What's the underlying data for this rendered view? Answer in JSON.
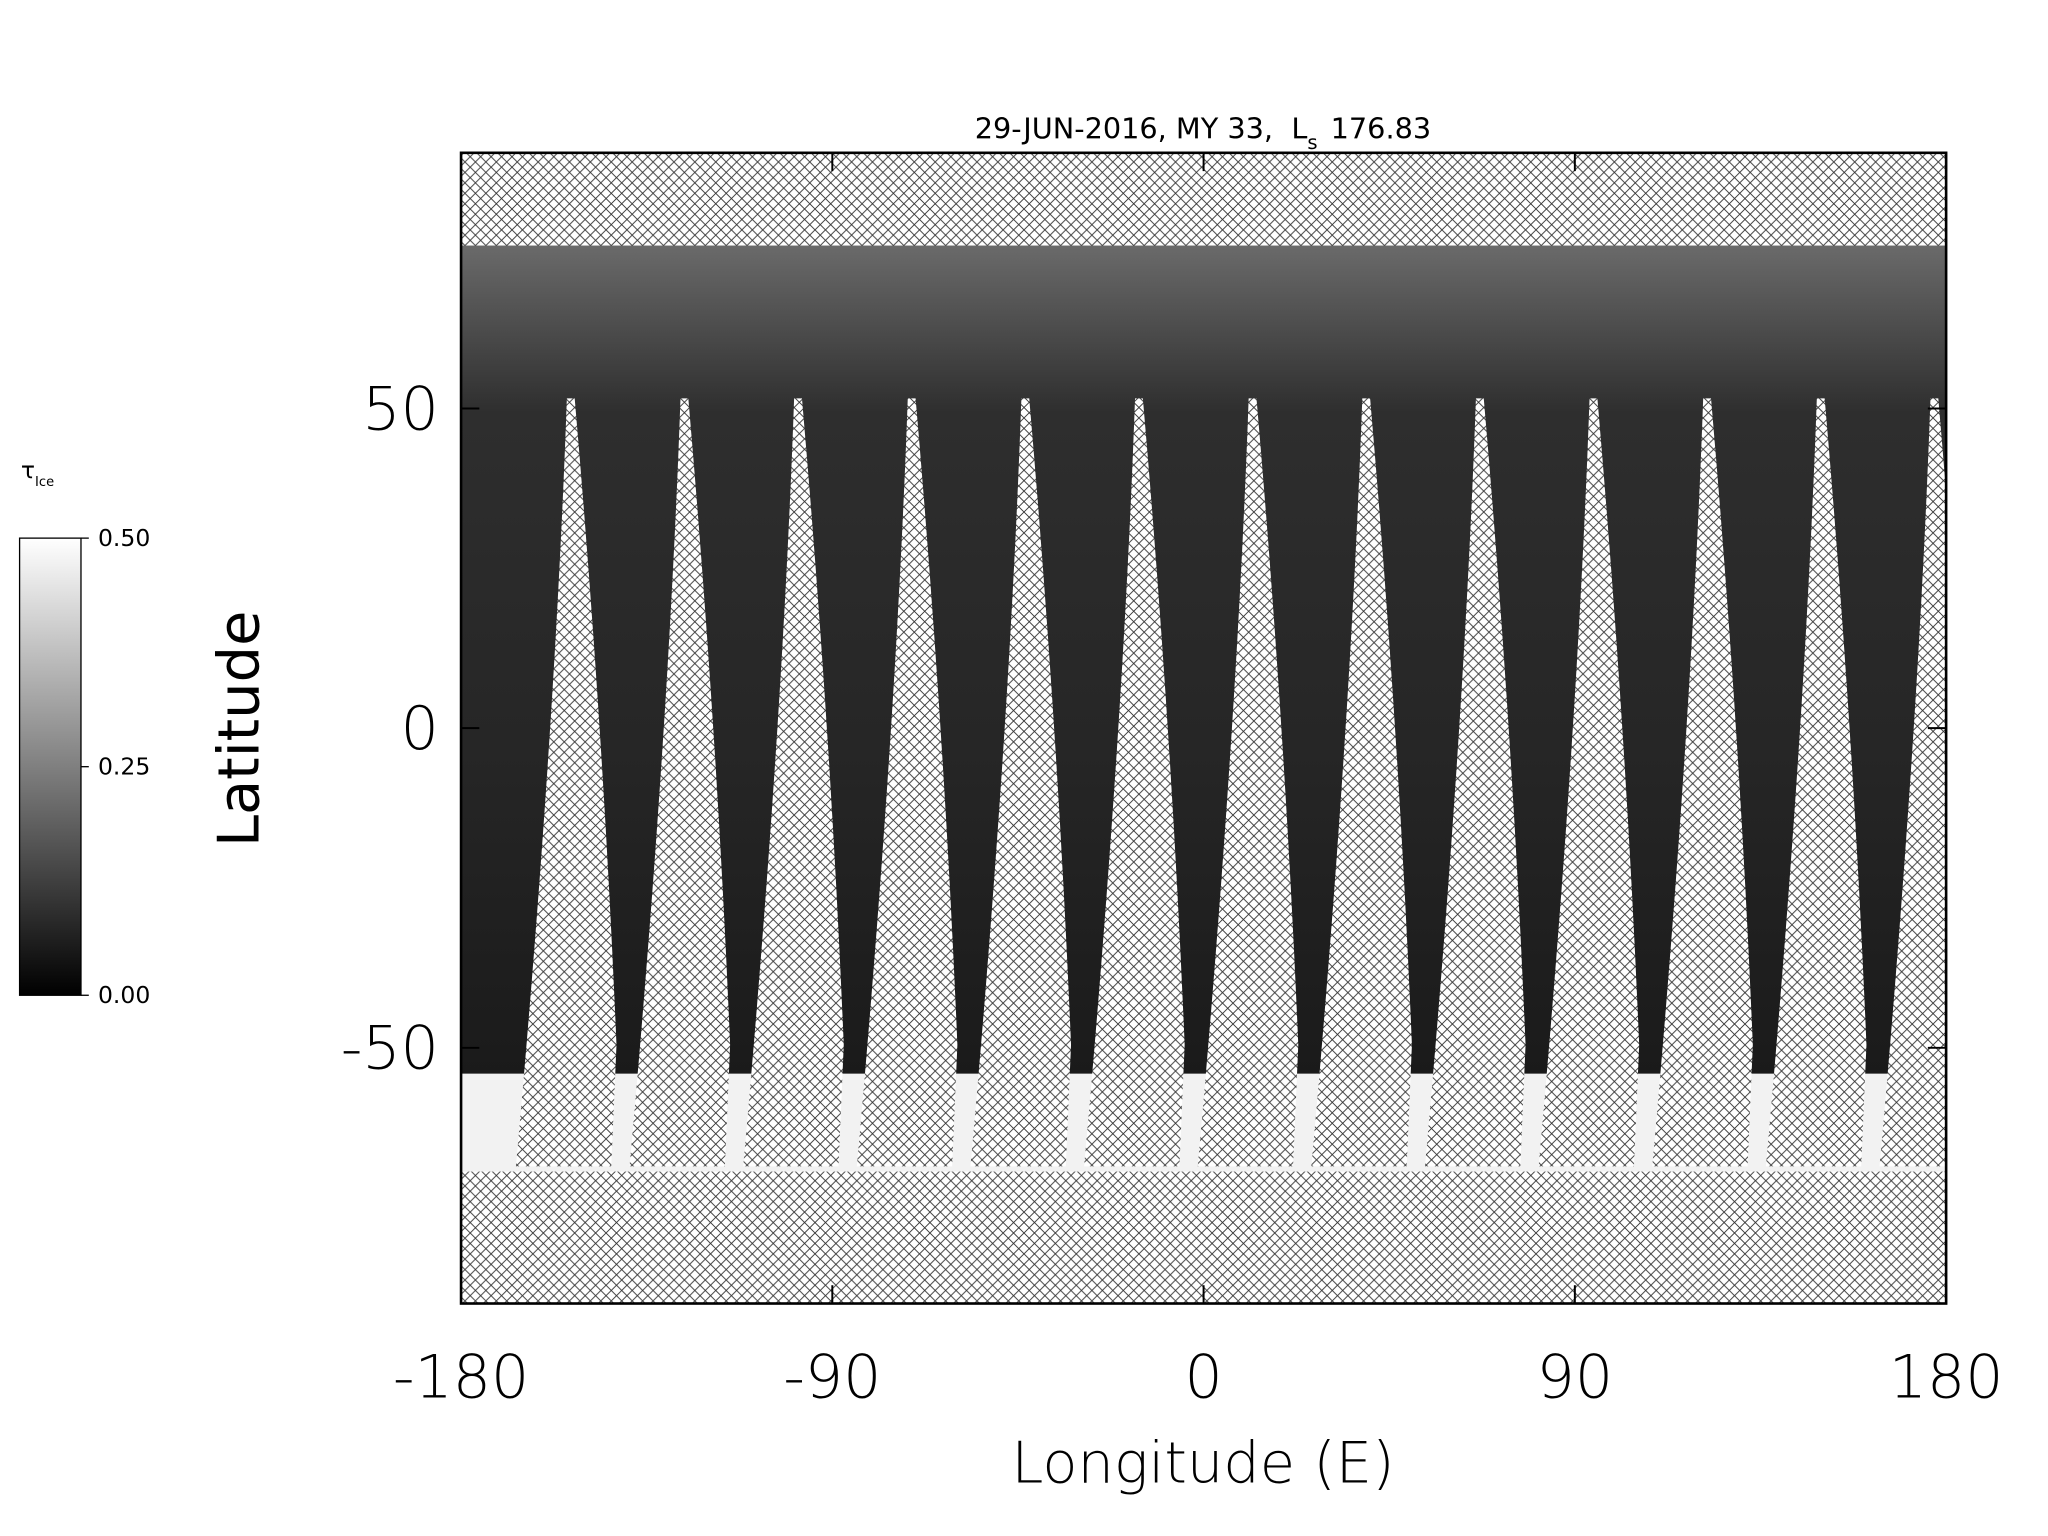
{
  "chart_data": {
    "type": "map",
    "title": {
      "prefix": "29-JUN-2016, MY 33,",
      "symbol": "L",
      "subscript": "s",
      "value": 176.83
    },
    "xlabel": "Longitude (E)",
    "ylabel": "Latitude",
    "xlim": [
      -180,
      180
    ],
    "xticks": [
      -180,
      -90,
      0,
      90,
      180
    ],
    "ylim": [
      -90,
      90
    ],
    "yticks": [
      -50,
      0,
      50
    ],
    "colorbar": {
      "symbol": "τ",
      "subscript": "Ice",
      "lim": [
        0,
        0.5
      ],
      "ticks": [
        {
          "value": 0,
          "label": "0.00"
        },
        {
          "value": 0.25,
          "label": "0.25"
        },
        {
          "value": 0.5,
          "label": "0.50"
        }
      ]
    }
  }
}
